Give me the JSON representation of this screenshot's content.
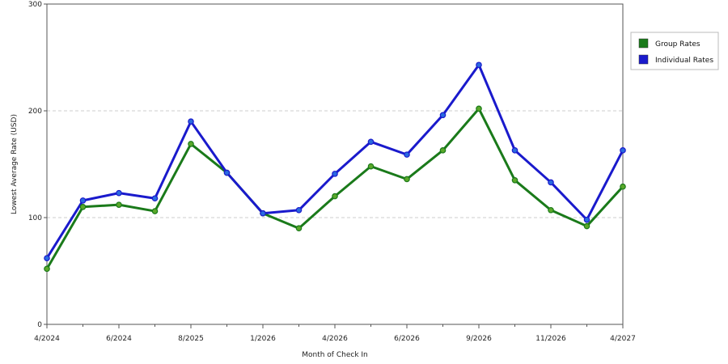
{
  "chart_data": {
    "type": "line",
    "title": "",
    "xlabel": "Month of Check In",
    "ylabel": "Lowest Average Rate (USD)",
    "ylim": [
      0,
      300
    ],
    "yticks": [
      "0",
      "100",
      "200",
      "300"
    ],
    "grid": true,
    "legend_position": "right",
    "x_count": 17,
    "x_tick_labels": [
      {
        "index": 0,
        "label": "4/2024"
      },
      {
        "index": 2,
        "label": "6/2024"
      },
      {
        "index": 4,
        "label": "8/2025"
      },
      {
        "index": 6,
        "label": "1/2026"
      },
      {
        "index": 8,
        "label": "4/2026"
      },
      {
        "index": 10,
        "label": "6/2026"
      },
      {
        "index": 12,
        "label": "9/2026"
      },
      {
        "index": 14,
        "label": "11/2026"
      },
      {
        "index": 16,
        "label": "4/2027"
      }
    ],
    "series": [
      {
        "name": "Group Rates",
        "color": "#1a7a1a",
        "marker_color": "#5aa82a",
        "values": [
          52,
          110,
          112,
          106,
          169,
          142,
          104,
          90,
          120,
          148,
          136,
          163,
          202,
          135,
          107,
          92,
          129
        ]
      },
      {
        "name": "Individual Rates",
        "color": "#1a1acc",
        "marker_color": "#2a6ae0",
        "values": [
          62,
          116,
          123,
          118,
          190,
          142,
          104,
          107,
          141,
          171,
          159,
          196,
          243,
          163,
          133,
          98,
          163
        ]
      }
    ]
  }
}
